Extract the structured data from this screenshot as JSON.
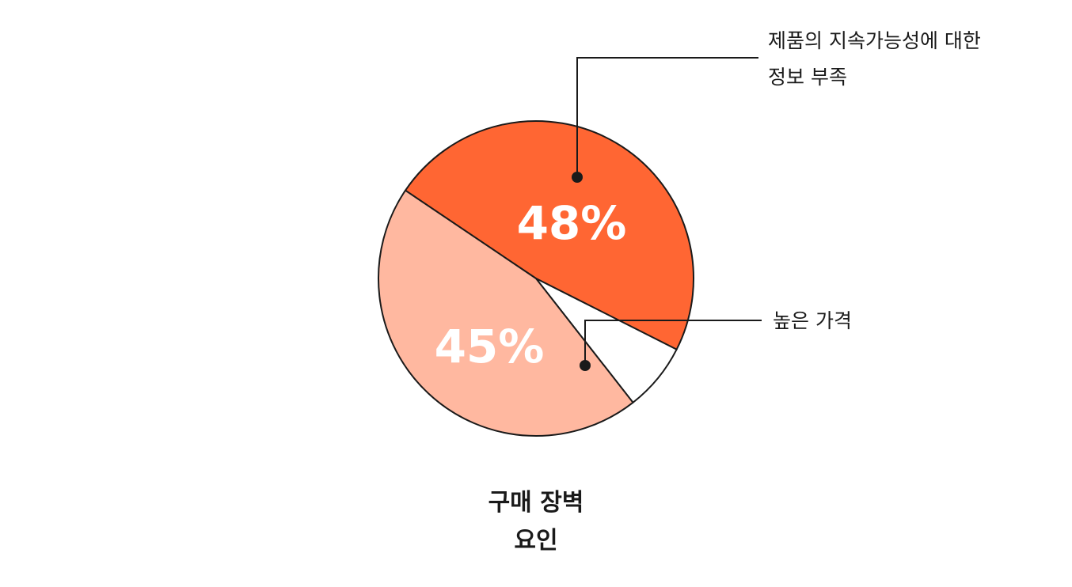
{
  "chart_data": {
    "type": "pie",
    "title": [
      "구매 장벽",
      "요인"
    ],
    "slices": [
      {
        "label": "제품의 지속가능성에 대한 정보 부족",
        "label_lines": [
          "제품의 지속가능성에 대한",
          "정보 부족"
        ],
        "value": 48,
        "display": "48%",
        "color": "#ff6633"
      },
      {
        "label": "높은 가격",
        "label_lines": [
          "높은 가격"
        ],
        "value": 7,
        "display": "",
        "color": "#ffffff"
      },
      {
        "label": "",
        "label_lines": [],
        "value": 45,
        "display": "45%",
        "color": "#ffb8a0"
      }
    ],
    "legend": "none",
    "grid": false
  },
  "colors": {
    "outline": "#1a1a1a",
    "label_text": "#ffffff"
  }
}
